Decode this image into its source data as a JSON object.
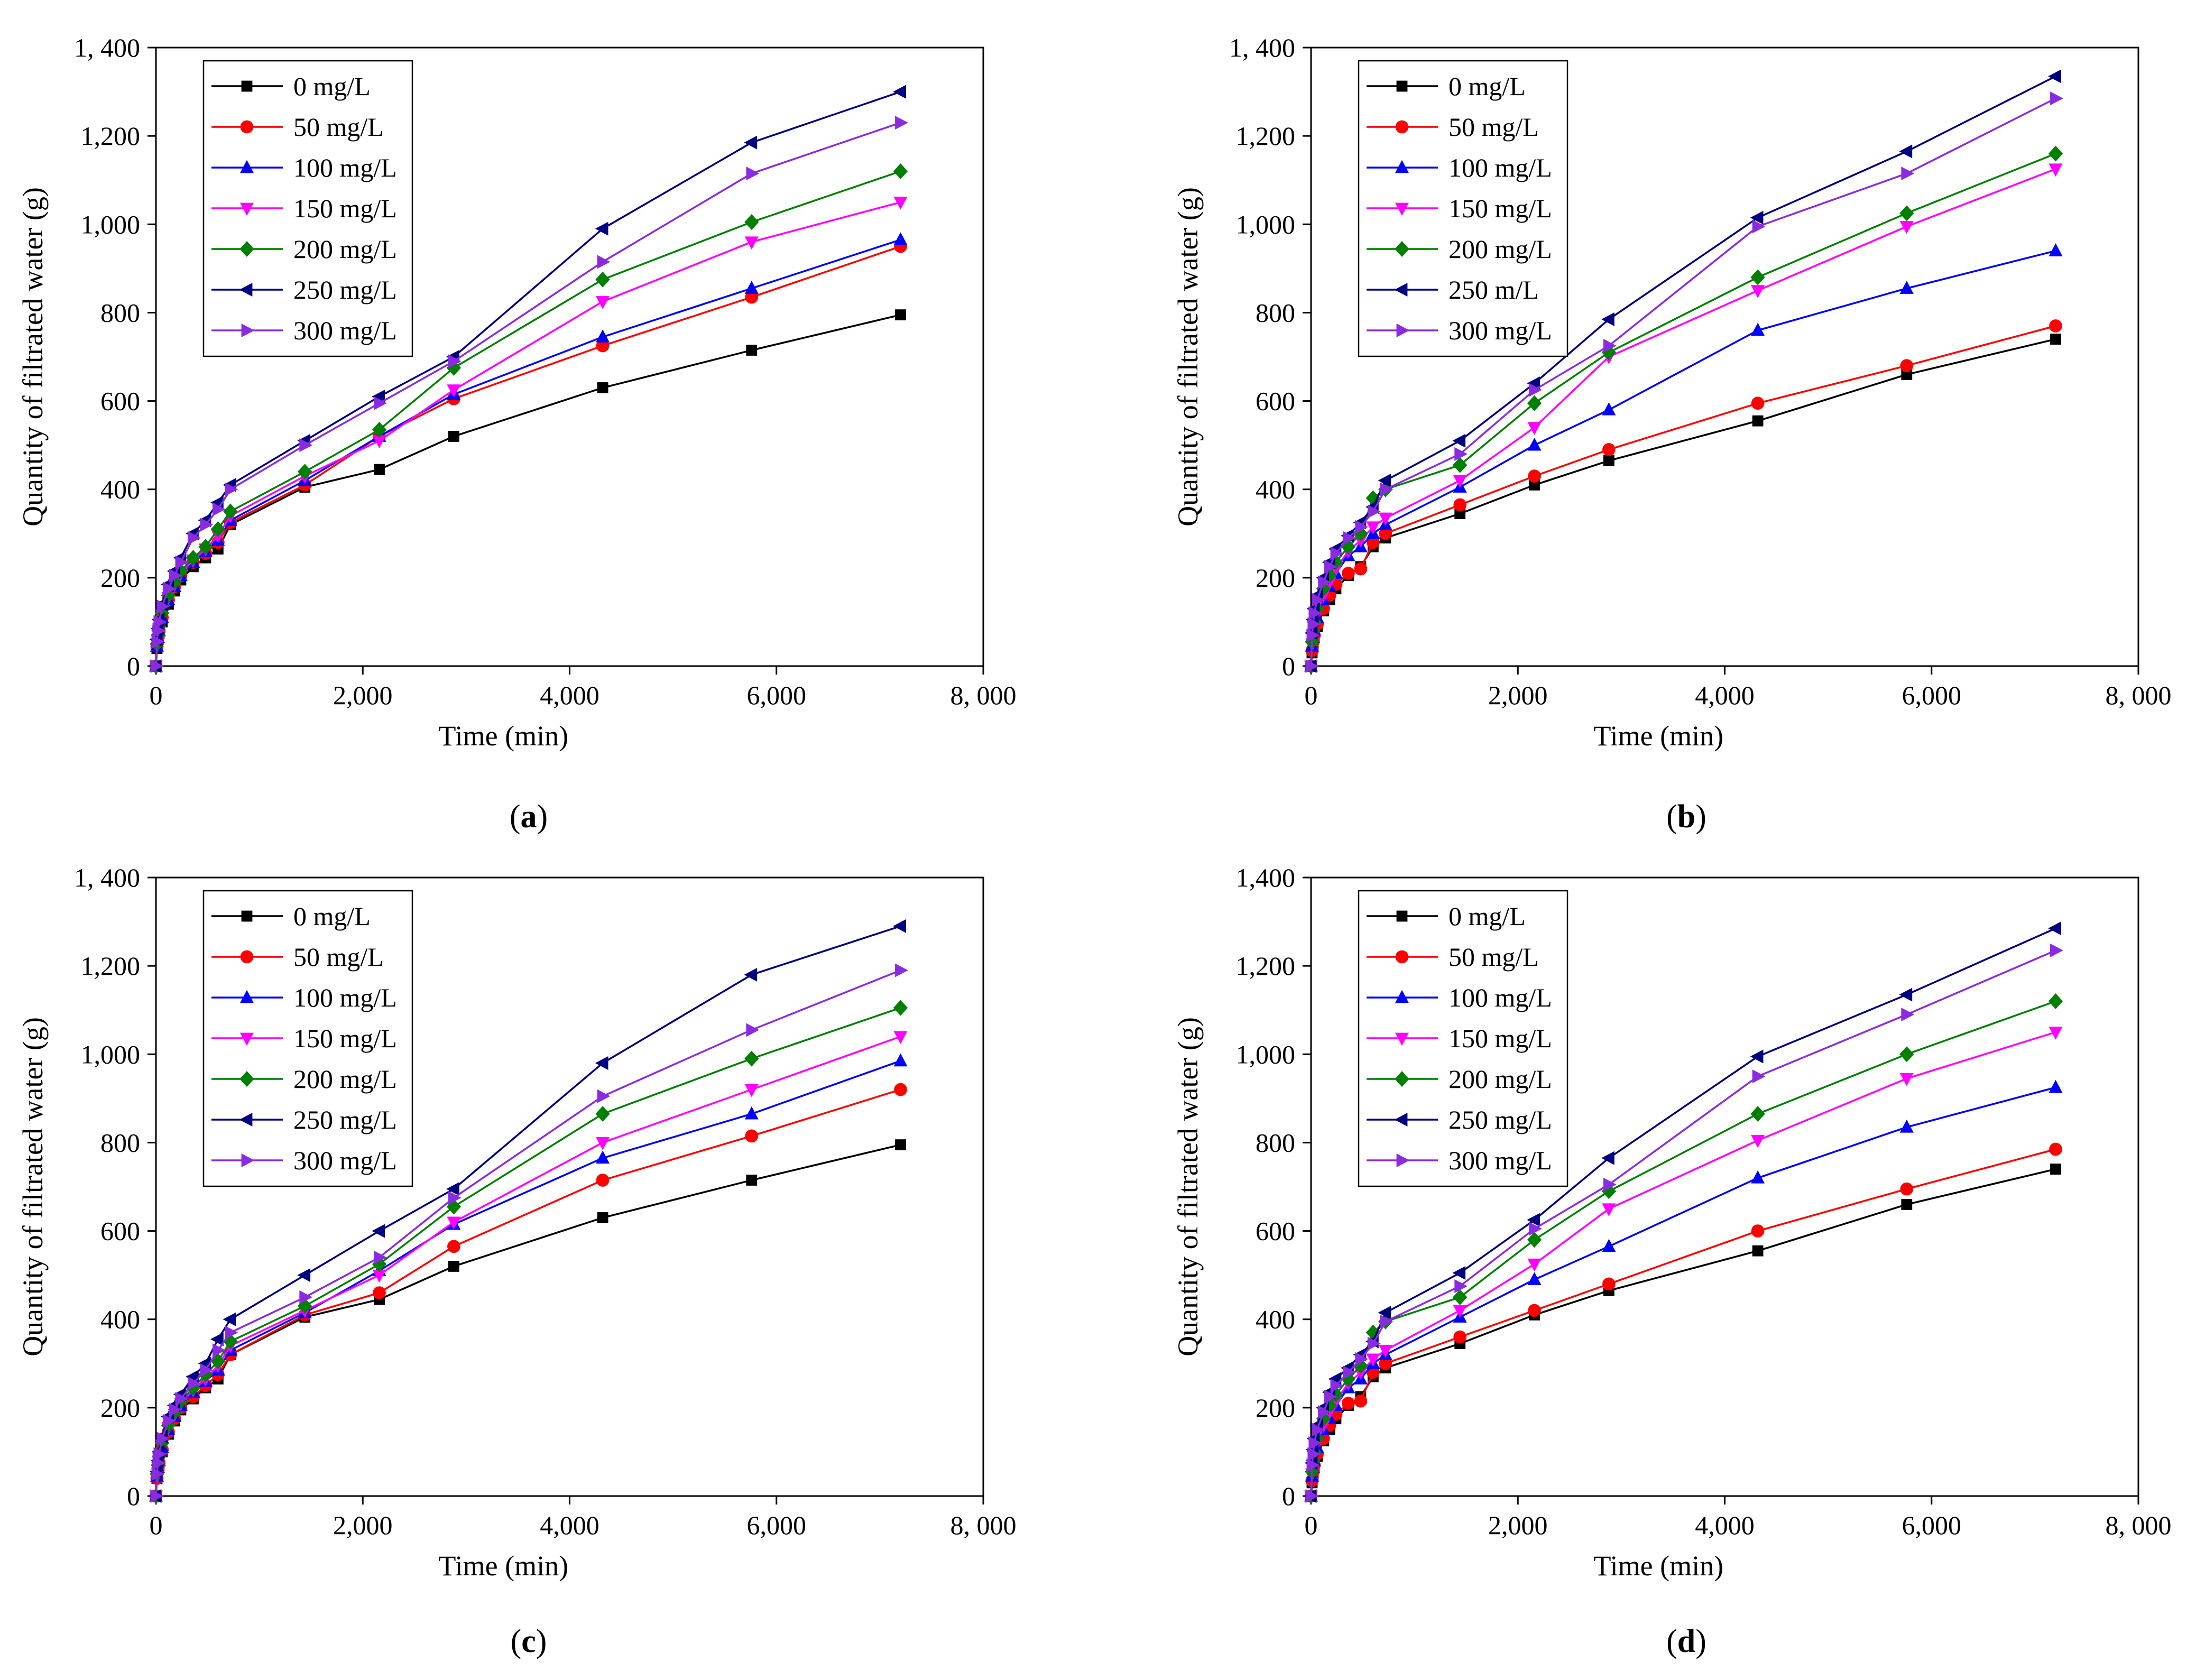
{
  "chart_data": [
    {
      "type": "line",
      "panel_label": "a",
      "xlabel": "Time (min)",
      "ylabel": "Quantity of filtrated water (g)",
      "xlim": [
        0,
        8000
      ],
      "ylim": [
        0,
        1400
      ],
      "xticks": [
        0,
        2000,
        4000,
        6000,
        8000
      ],
      "xtick_labels": [
        "0",
        "2,000",
        "4,000",
        "6,000",
        "8, 000"
      ],
      "yticks": [
        0,
        200,
        400,
        600,
        800,
        1000,
        1200,
        1400
      ],
      "ytick_labels": [
        "0",
        "200",
        "400",
        "600",
        "800",
        "1,000",
        "1,200",
        "1, 400"
      ],
      "legend_position": "top-left",
      "x": [
        0,
        10,
        20,
        30,
        60,
        120,
        180,
        240,
        360,
        480,
        600,
        720,
        1440,
        2160,
        2880,
        4320,
        5760,
        7200
      ],
      "series": [
        {
          "name": "0 mg/L",
          "color": "#000000",
          "marker": "square",
          "values": [
            0,
            40,
            60,
            75,
            100,
            140,
            170,
            195,
            225,
            245,
            265,
            320,
            405,
            445,
            520,
            630,
            715,
            795
          ]
        },
        {
          "name": "50 mg/L",
          "color": "#ff0000",
          "marker": "circle",
          "values": [
            0,
            45,
            65,
            80,
            110,
            150,
            180,
            205,
            235,
            255,
            280,
            325,
            410,
            520,
            605,
            725,
            835,
            950
          ]
        },
        {
          "name": "100 mg/L",
          "color": "#0000ff",
          "marker": "triangle-up",
          "values": [
            0,
            45,
            65,
            80,
            110,
            150,
            180,
            205,
            235,
            260,
            285,
            330,
            420,
            520,
            615,
            745,
            855,
            965
          ]
        },
        {
          "name": "150 mg/L",
          "color": "#ff00ff",
          "marker": "triangle-down",
          "values": [
            0,
            50,
            70,
            85,
            115,
            155,
            185,
            210,
            240,
            265,
            295,
            340,
            430,
            510,
            625,
            825,
            960,
            1050
          ]
        },
        {
          "name": "200 mg/L",
          "color": "#008000",
          "marker": "diamond",
          "values": [
            0,
            50,
            70,
            90,
            120,
            160,
            190,
            215,
            245,
            270,
            310,
            350,
            440,
            535,
            675,
            875,
            1005,
            1120
          ]
        },
        {
          "name": "250 mg/L",
          "color": "#000080",
          "marker": "triangle-left",
          "values": [
            0,
            60,
            85,
            105,
            140,
            185,
            215,
            245,
            300,
            330,
            370,
            410,
            510,
            610,
            700,
            990,
            1185,
            1300
          ]
        },
        {
          "name": "300 mg/L",
          "color": "#8a2be2",
          "marker": "triangle-right",
          "values": [
            0,
            55,
            80,
            100,
            135,
            175,
            205,
            235,
            290,
            320,
            355,
            400,
            500,
            595,
            690,
            915,
            1115,
            1230
          ]
        }
      ]
    },
    {
      "type": "line",
      "panel_label": "b",
      "xlabel": "Time (min)",
      "ylabel": "Quantity of filtrated water (g)",
      "xlim": [
        0,
        8000
      ],
      "ylim": [
        0,
        1400
      ],
      "xticks": [
        0,
        2000,
        4000,
        6000,
        8000
      ],
      "xtick_labels": [
        "0",
        "2,000",
        "4,000",
        "6,000",
        "8, 000"
      ],
      "yticks": [
        0,
        200,
        400,
        600,
        800,
        1000,
        1200,
        1400
      ],
      "ytick_labels": [
        "0",
        "200",
        "400",
        "600",
        "800",
        "1,000",
        "1,200",
        "1, 400"
      ],
      "legend_position": "top-left",
      "x": [
        0,
        10,
        20,
        30,
        60,
        120,
        180,
        240,
        360,
        480,
        600,
        720,
        1440,
        2160,
        2880,
        4320,
        5760,
        7200
      ],
      "series": [
        {
          "name": "0 mg/L",
          "color": "#000000",
          "marker": "square",
          "values": [
            0,
            30,
            50,
            65,
            90,
            125,
            150,
            175,
            205,
            225,
            270,
            290,
            345,
            410,
            465,
            555,
            660,
            740
          ]
        },
        {
          "name": "50 mg/L",
          "color": "#ff0000",
          "marker": "circle",
          "values": [
            0,
            35,
            55,
            70,
            95,
            130,
            160,
            185,
            210,
            220,
            280,
            300,
            365,
            430,
            490,
            595,
            680,
            770
          ]
        },
        {
          "name": "100 mg/L",
          "color": "#0000ff",
          "marker": "triangle-up",
          "values": [
            0,
            45,
            65,
            80,
            110,
            150,
            180,
            210,
            250,
            270,
            300,
            320,
            405,
            500,
            580,
            760,
            855,
            940
          ]
        },
        {
          "name": "150 mg/L",
          "color": "#ff00ff",
          "marker": "triangle-down",
          "values": [
            0,
            50,
            70,
            90,
            120,
            160,
            190,
            220,
            260,
            285,
            315,
            335,
            420,
            540,
            700,
            850,
            995,
            1125
          ]
        },
        {
          "name": "200 mg/L",
          "color": "#008000",
          "marker": "diamond",
          "values": [
            0,
            55,
            80,
            100,
            130,
            175,
            205,
            235,
            270,
            300,
            380,
            400,
            455,
            595,
            710,
            880,
            1025,
            1160
          ]
        },
        {
          "name": "250 m/L",
          "color": "#000080",
          "marker": "triangle-left",
          "values": [
            0,
            75,
            105,
            130,
            160,
            200,
            235,
            265,
            295,
            325,
            360,
            420,
            510,
            640,
            785,
            1015,
            1165,
            1335
          ]
        },
        {
          "name": "300 mg/L",
          "color": "#8a2be2",
          "marker": "triangle-right",
          "values": [
            0,
            70,
            95,
            120,
            150,
            190,
            225,
            255,
            290,
            315,
            350,
            400,
            480,
            625,
            725,
            995,
            1115,
            1285
          ]
        }
      ]
    },
    {
      "type": "line",
      "panel_label": "c",
      "xlabel": "Time (min)",
      "ylabel": "Quantity of filtrated water (g)",
      "xlim": [
        0,
        8000
      ],
      "ylim": [
        0,
        1400
      ],
      "xticks": [
        0,
        2000,
        4000,
        6000,
        8000
      ],
      "xtick_labels": [
        "0",
        "2,000",
        "4,000",
        "6,000",
        "8, 000"
      ],
      "yticks": [
        0,
        200,
        400,
        600,
        800,
        1000,
        1200,
        1400
      ],
      "ytick_labels": [
        "0",
        "200",
        "400",
        "600",
        "800",
        "1,000",
        "1,200",
        "1, 400"
      ],
      "legend_position": "top-left",
      "x": [
        0,
        10,
        20,
        30,
        60,
        120,
        180,
        240,
        360,
        480,
        600,
        720,
        1440,
        2160,
        2880,
        4320,
        5760,
        7200
      ],
      "series": [
        {
          "name": "0 mg/L",
          "color": "#000000",
          "marker": "square",
          "values": [
            0,
            40,
            60,
            75,
            100,
            140,
            170,
            195,
            220,
            245,
            265,
            320,
            405,
            445,
            520,
            630,
            715,
            795
          ]
        },
        {
          "name": "50 mg/L",
          "color": "#ff0000",
          "marker": "circle",
          "values": [
            0,
            40,
            60,
            75,
            105,
            145,
            175,
            200,
            225,
            250,
            275,
            320,
            410,
            460,
            565,
            715,
            815,
            920
          ]
        },
        {
          "name": "100 mg/L",
          "color": "#0000ff",
          "marker": "triangle-up",
          "values": [
            0,
            45,
            65,
            80,
            110,
            150,
            180,
            205,
            235,
            260,
            285,
            330,
            415,
            510,
            615,
            765,
            865,
            985
          ]
        },
        {
          "name": "150 mg/L",
          "color": "#ff00ff",
          "marker": "triangle-down",
          "values": [
            0,
            45,
            65,
            85,
            115,
            155,
            185,
            210,
            240,
            265,
            295,
            340,
            420,
            500,
            620,
            800,
            920,
            1040
          ]
        },
        {
          "name": "200 mg/L",
          "color": "#008000",
          "marker": "diamond",
          "values": [
            0,
            50,
            70,
            90,
            120,
            160,
            190,
            215,
            245,
            275,
            305,
            350,
            430,
            525,
            655,
            865,
            990,
            1105
          ]
        },
        {
          "name": "250 mg/L",
          "color": "#000080",
          "marker": "triangle-left",
          "values": [
            0,
            55,
            80,
            100,
            135,
            180,
            205,
            230,
            270,
            300,
            355,
            400,
            500,
            600,
            695,
            980,
            1180,
            1290
          ]
        },
        {
          "name": "300 mg/L",
          "color": "#8a2be2",
          "marker": "triangle-right",
          "values": [
            0,
            50,
            75,
            95,
            130,
            170,
            195,
            220,
            255,
            285,
            330,
            370,
            450,
            540,
            675,
            905,
            1055,
            1190
          ]
        }
      ]
    },
    {
      "type": "line",
      "panel_label": "d",
      "xlabel": "Time (min)",
      "ylabel": "Quantity of filtrated water (g)",
      "xlim": [
        0,
        8000
      ],
      "ylim": [
        0,
        1400
      ],
      "xticks": [
        0,
        2000,
        4000,
        6000,
        8000
      ],
      "xtick_labels": [
        "0",
        "2,000",
        "4,000",
        "6,000",
        "8, 000"
      ],
      "yticks": [
        0,
        200,
        400,
        600,
        800,
        1000,
        1200,
        1400
      ],
      "ytick_labels": [
        "0",
        "200",
        "400",
        "600",
        "800",
        "1,000",
        "1,200",
        "1,400"
      ],
      "legend_position": "top-left",
      "x": [
        0,
        10,
        20,
        30,
        60,
        120,
        180,
        240,
        360,
        480,
        600,
        720,
        1440,
        2160,
        2880,
        4320,
        5760,
        7200
      ],
      "series": [
        {
          "name": "0 mg/L",
          "color": "#000000",
          "marker": "square",
          "values": [
            0,
            30,
            50,
            65,
            90,
            125,
            150,
            175,
            205,
            225,
            270,
            290,
            345,
            410,
            465,
            555,
            660,
            740
          ]
        },
        {
          "name": "50 mg/L",
          "color": "#ff0000",
          "marker": "circle",
          "values": [
            0,
            35,
            55,
            70,
            95,
            130,
            160,
            185,
            210,
            215,
            280,
            300,
            360,
            420,
            480,
            600,
            695,
            785
          ]
        },
        {
          "name": "100 mg/L",
          "color": "#0000ff",
          "marker": "triangle-up",
          "values": [
            0,
            45,
            65,
            80,
            110,
            150,
            175,
            205,
            245,
            265,
            300,
            320,
            405,
            490,
            565,
            720,
            835,
            925
          ]
        },
        {
          "name": "150 mg/L",
          "color": "#ff00ff",
          "marker": "triangle-down",
          "values": [
            0,
            50,
            70,
            90,
            120,
            160,
            190,
            215,
            255,
            280,
            310,
            330,
            420,
            525,
            650,
            805,
            945,
            1050
          ]
        },
        {
          "name": "200 mg/L",
          "color": "#008000",
          "marker": "diamond",
          "values": [
            0,
            55,
            80,
            100,
            130,
            175,
            205,
            230,
            265,
            295,
            370,
            395,
            450,
            580,
            690,
            865,
            1000,
            1120
          ]
        },
        {
          "name": "250 mg/L",
          "color": "#000080",
          "marker": "triangle-left",
          "values": [
            0,
            75,
            105,
            130,
            160,
            200,
            235,
            265,
            290,
            320,
            350,
            415,
            505,
            625,
            765,
            995,
            1135,
            1285
          ]
        },
        {
          "name": "300 mg/L",
          "color": "#8a2be2",
          "marker": "triangle-right",
          "values": [
            0,
            70,
            95,
            120,
            150,
            190,
            225,
            250,
            280,
            310,
            345,
            395,
            475,
            605,
            705,
            950,
            1090,
            1235
          ]
        }
      ]
    }
  ]
}
